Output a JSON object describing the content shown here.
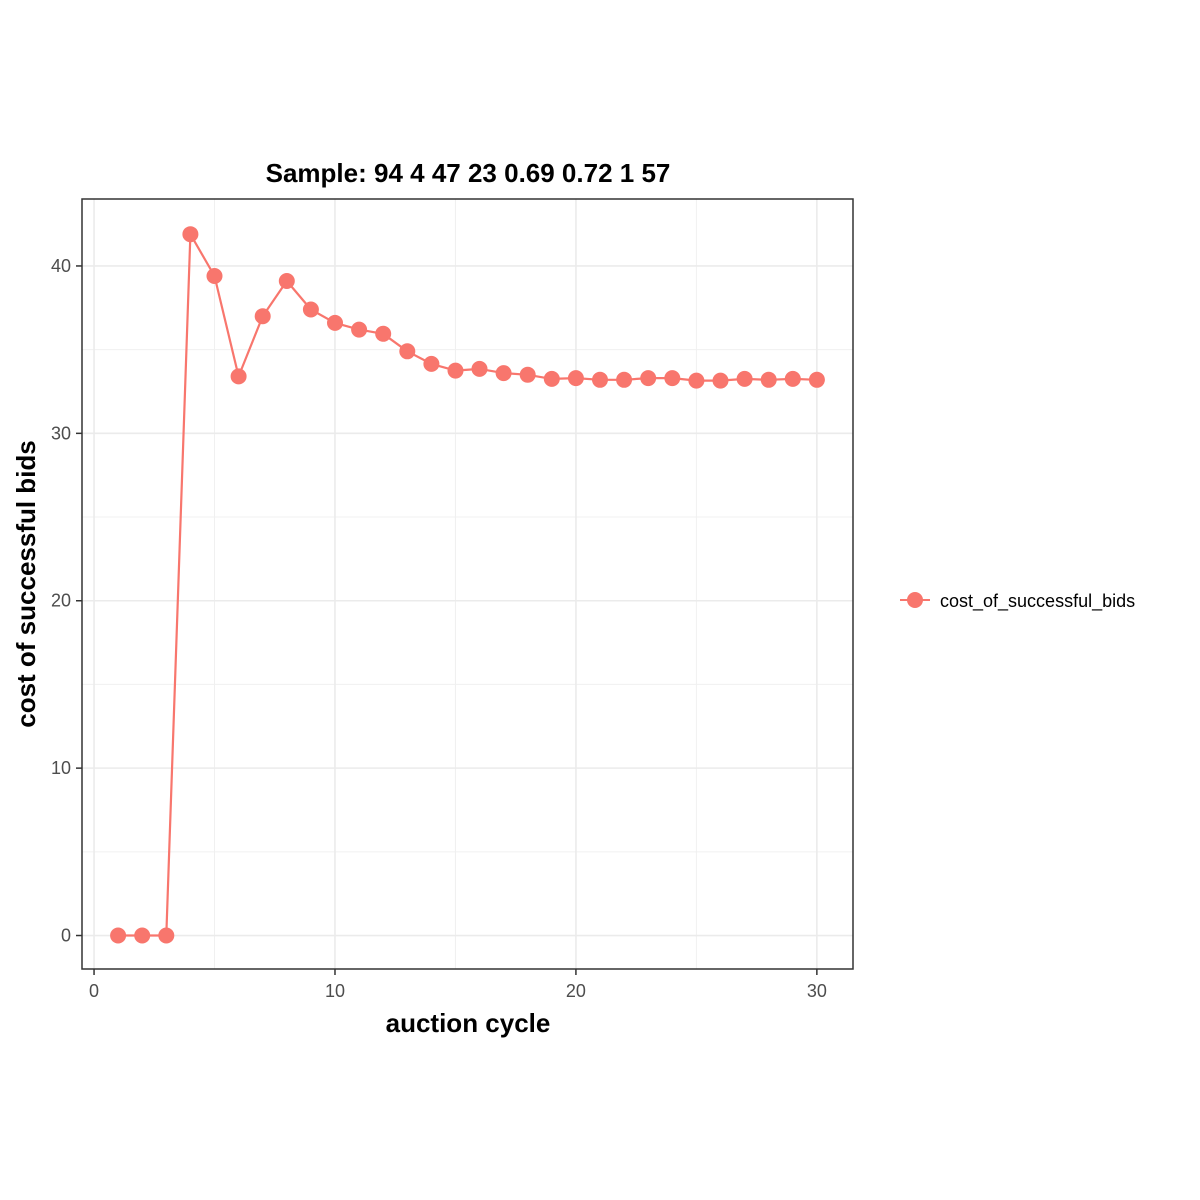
{
  "chart_data": {
    "type": "line",
    "title": "Sample: 94 4 47 23 0.69 0.72 1 57",
    "xlabel": "auction cycle",
    "ylabel": "cost of successful bids",
    "xlim": [
      -0.5,
      31.5
    ],
    "ylim": [
      -2,
      44
    ],
    "x_ticks": [
      0,
      10,
      20,
      30
    ],
    "y_ticks": [
      0,
      10,
      20,
      30,
      40
    ],
    "grid": true,
    "legend_position": "right",
    "color": "#F8766D",
    "series": [
      {
        "name": "cost_of_successful_bids",
        "x": [
          1,
          2,
          3,
          4,
          5,
          6,
          7,
          8,
          9,
          10,
          11,
          12,
          13,
          14,
          15,
          16,
          17,
          18,
          19,
          20,
          21,
          22,
          23,
          24,
          25,
          26,
          27,
          28,
          29,
          30
        ],
        "values": [
          0,
          0,
          0,
          41.9,
          39.4,
          33.4,
          37.0,
          39.1,
          37.4,
          36.6,
          36.2,
          35.95,
          34.9,
          34.15,
          33.75,
          33.85,
          33.6,
          33.5,
          33.25,
          33.3,
          33.2,
          33.2,
          33.3,
          33.3,
          33.15,
          33.15,
          33.25,
          33.2,
          33.25,
          33.2
        ]
      }
    ]
  }
}
